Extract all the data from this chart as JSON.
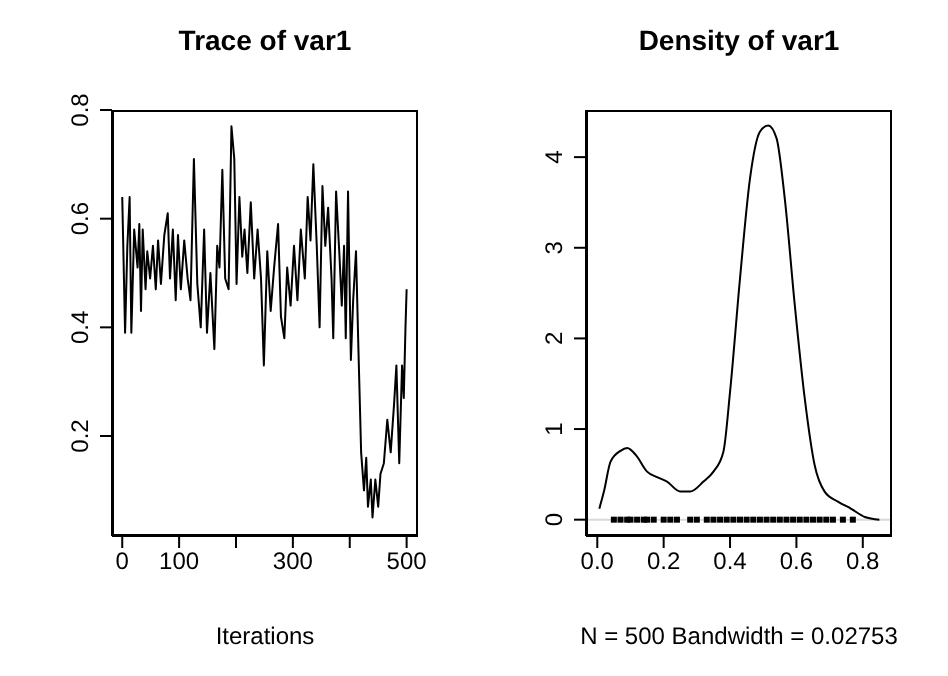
{
  "chart_data": [
    {
      "type": "line",
      "title": "Trace of var1",
      "xlabel": "Iterations",
      "xlim": [
        -18,
        520
      ],
      "xticks": [
        0,
        100,
        {
          "value": 200,
          "label": null
        },
        300,
        {
          "value": 400,
          "label": null
        },
        500
      ],
      "ylim": [
        0.016,
        0.8
      ],
      "yticks": [
        0.2,
        0.4,
        0.6,
        0.8
      ],
      "grid": false,
      "series": [
        {
          "color": "#000000",
          "x": [
            0,
            5,
            9,
            13,
            16,
            21,
            27,
            30,
            33,
            36,
            41,
            44,
            49,
            54,
            59,
            63,
            68,
            74,
            80,
            84,
            89,
            94,
            98,
            103,
            109,
            115,
            120,
            126,
            132,
            138,
            144,
            149,
            155,
            162,
            167,
            171,
            176,
            181,
            187,
            192,
            197,
            201,
            206,
            211,
            215,
            220,
            226,
            232,
            238,
            244,
            249,
            255,
            261,
            267,
            274,
            279,
            285,
            290,
            296,
            302,
            308,
            314,
            321,
            326,
            331,
            336,
            342,
            347,
            352,
            357,
            362,
            368,
            371,
            376,
            382,
            386,
            390,
            393,
            397,
            402,
            406,
            411,
            415,
            420,
            425,
            429,
            432,
            437,
            440,
            445,
            450,
            454,
            460,
            466,
            472,
            478,
            482,
            487,
            492,
            495,
            498,
            500
          ],
          "values": [
            0.64,
            0.39,
            0.55,
            0.64,
            0.39,
            0.58,
            0.51,
            0.59,
            0.43,
            0.58,
            0.47,
            0.54,
            0.49,
            0.55,
            0.47,
            0.56,
            0.48,
            0.57,
            0.61,
            0.49,
            0.58,
            0.45,
            0.57,
            0.47,
            0.56,
            0.49,
            0.45,
            0.71,
            0.48,
            0.4,
            0.58,
            0.39,
            0.5,
            0.36,
            0.55,
            0.51,
            0.69,
            0.49,
            0.47,
            0.77,
            0.71,
            0.48,
            0.64,
            0.53,
            0.58,
            0.5,
            0.63,
            0.49,
            0.58,
            0.49,
            0.33,
            0.54,
            0.43,
            0.51,
            0.59,
            0.42,
            0.38,
            0.51,
            0.44,
            0.55,
            0.45,
            0.58,
            0.49,
            0.64,
            0.56,
            0.7,
            0.55,
            0.4,
            0.66,
            0.55,
            0.62,
            0.49,
            0.38,
            0.65,
            0.53,
            0.44,
            0.55,
            0.38,
            0.65,
            0.34,
            0.45,
            0.54,
            0.37,
            0.17,
            0.1,
            0.16,
            0.07,
            0.12,
            0.05,
            0.12,
            0.07,
            0.13,
            0.15,
            0.23,
            0.17,
            0.26,
            0.33,
            0.15,
            0.33,
            0.27,
            0.4,
            0.47
          ]
        }
      ]
    },
    {
      "type": "line",
      "title": "Density of var1",
      "xlabel": "N = 500   Bandwidth = 0.02753",
      "xlim": [
        -0.034,
        0.888
      ],
      "xticks": [
        {
          "value": 0,
          "label": "0.0"
        },
        0.2,
        0.4,
        0.6,
        0.8
      ],
      "ylim": [
        -0.18,
        4.52
      ],
      "yticks": [
        0,
        1,
        2,
        3,
        4
      ],
      "grid": false,
      "ref_lines": [
        {
          "axis": "y",
          "value": 0,
          "color": "#d9d9d9"
        }
      ],
      "series": [
        {
          "color": "#000000",
          "x": [
            0.006,
            0.02,
            0.04,
            0.07,
            0.09,
            0.117,
            0.15,
            0.18,
            0.21,
            0.25,
            0.28,
            0.32,
            0.35,
            0.38,
            0.4,
            0.43,
            0.46,
            0.49,
            0.515,
            0.54,
            0.565,
            0.595,
            0.625,
            0.655,
            0.685,
            0.725,
            0.765,
            0.806,
            0.85
          ],
          "values": [
            0.12,
            0.31,
            0.64,
            0.76,
            0.79,
            0.71,
            0.53,
            0.47,
            0.42,
            0.31,
            0.31,
            0.42,
            0.53,
            0.75,
            1.41,
            2.66,
            3.76,
            4.28,
            4.35,
            4.21,
            3.54,
            2.37,
            1.34,
            0.6,
            0.31,
            0.2,
            0.12,
            0.03,
            0.0
          ]
        },
        {
          "type": "scatter",
          "marker": "square",
          "color": "#000000",
          "x": [
            0.05,
            0.07,
            0.09,
            0.1,
            0.12,
            0.14,
            0.15,
            0.17,
            0.2,
            0.22,
            0.24,
            0.28,
            0.3,
            0.33,
            0.35,
            0.37,
            0.39,
            0.41,
            0.43,
            0.45,
            0.47,
            0.49,
            0.51,
            0.53,
            0.55,
            0.57,
            0.59,
            0.61,
            0.63,
            0.65,
            0.67,
            0.69,
            0.71,
            0.74,
            0.77
          ],
          "values": [
            0,
            0,
            0,
            0,
            0,
            0,
            0,
            0,
            0,
            0,
            0,
            0,
            0,
            0,
            0,
            0,
            0,
            0,
            0,
            0,
            0,
            0,
            0,
            0,
            0,
            0,
            0,
            0,
            0,
            0,
            0,
            0,
            0,
            0,
            0
          ]
        }
      ]
    }
  ]
}
